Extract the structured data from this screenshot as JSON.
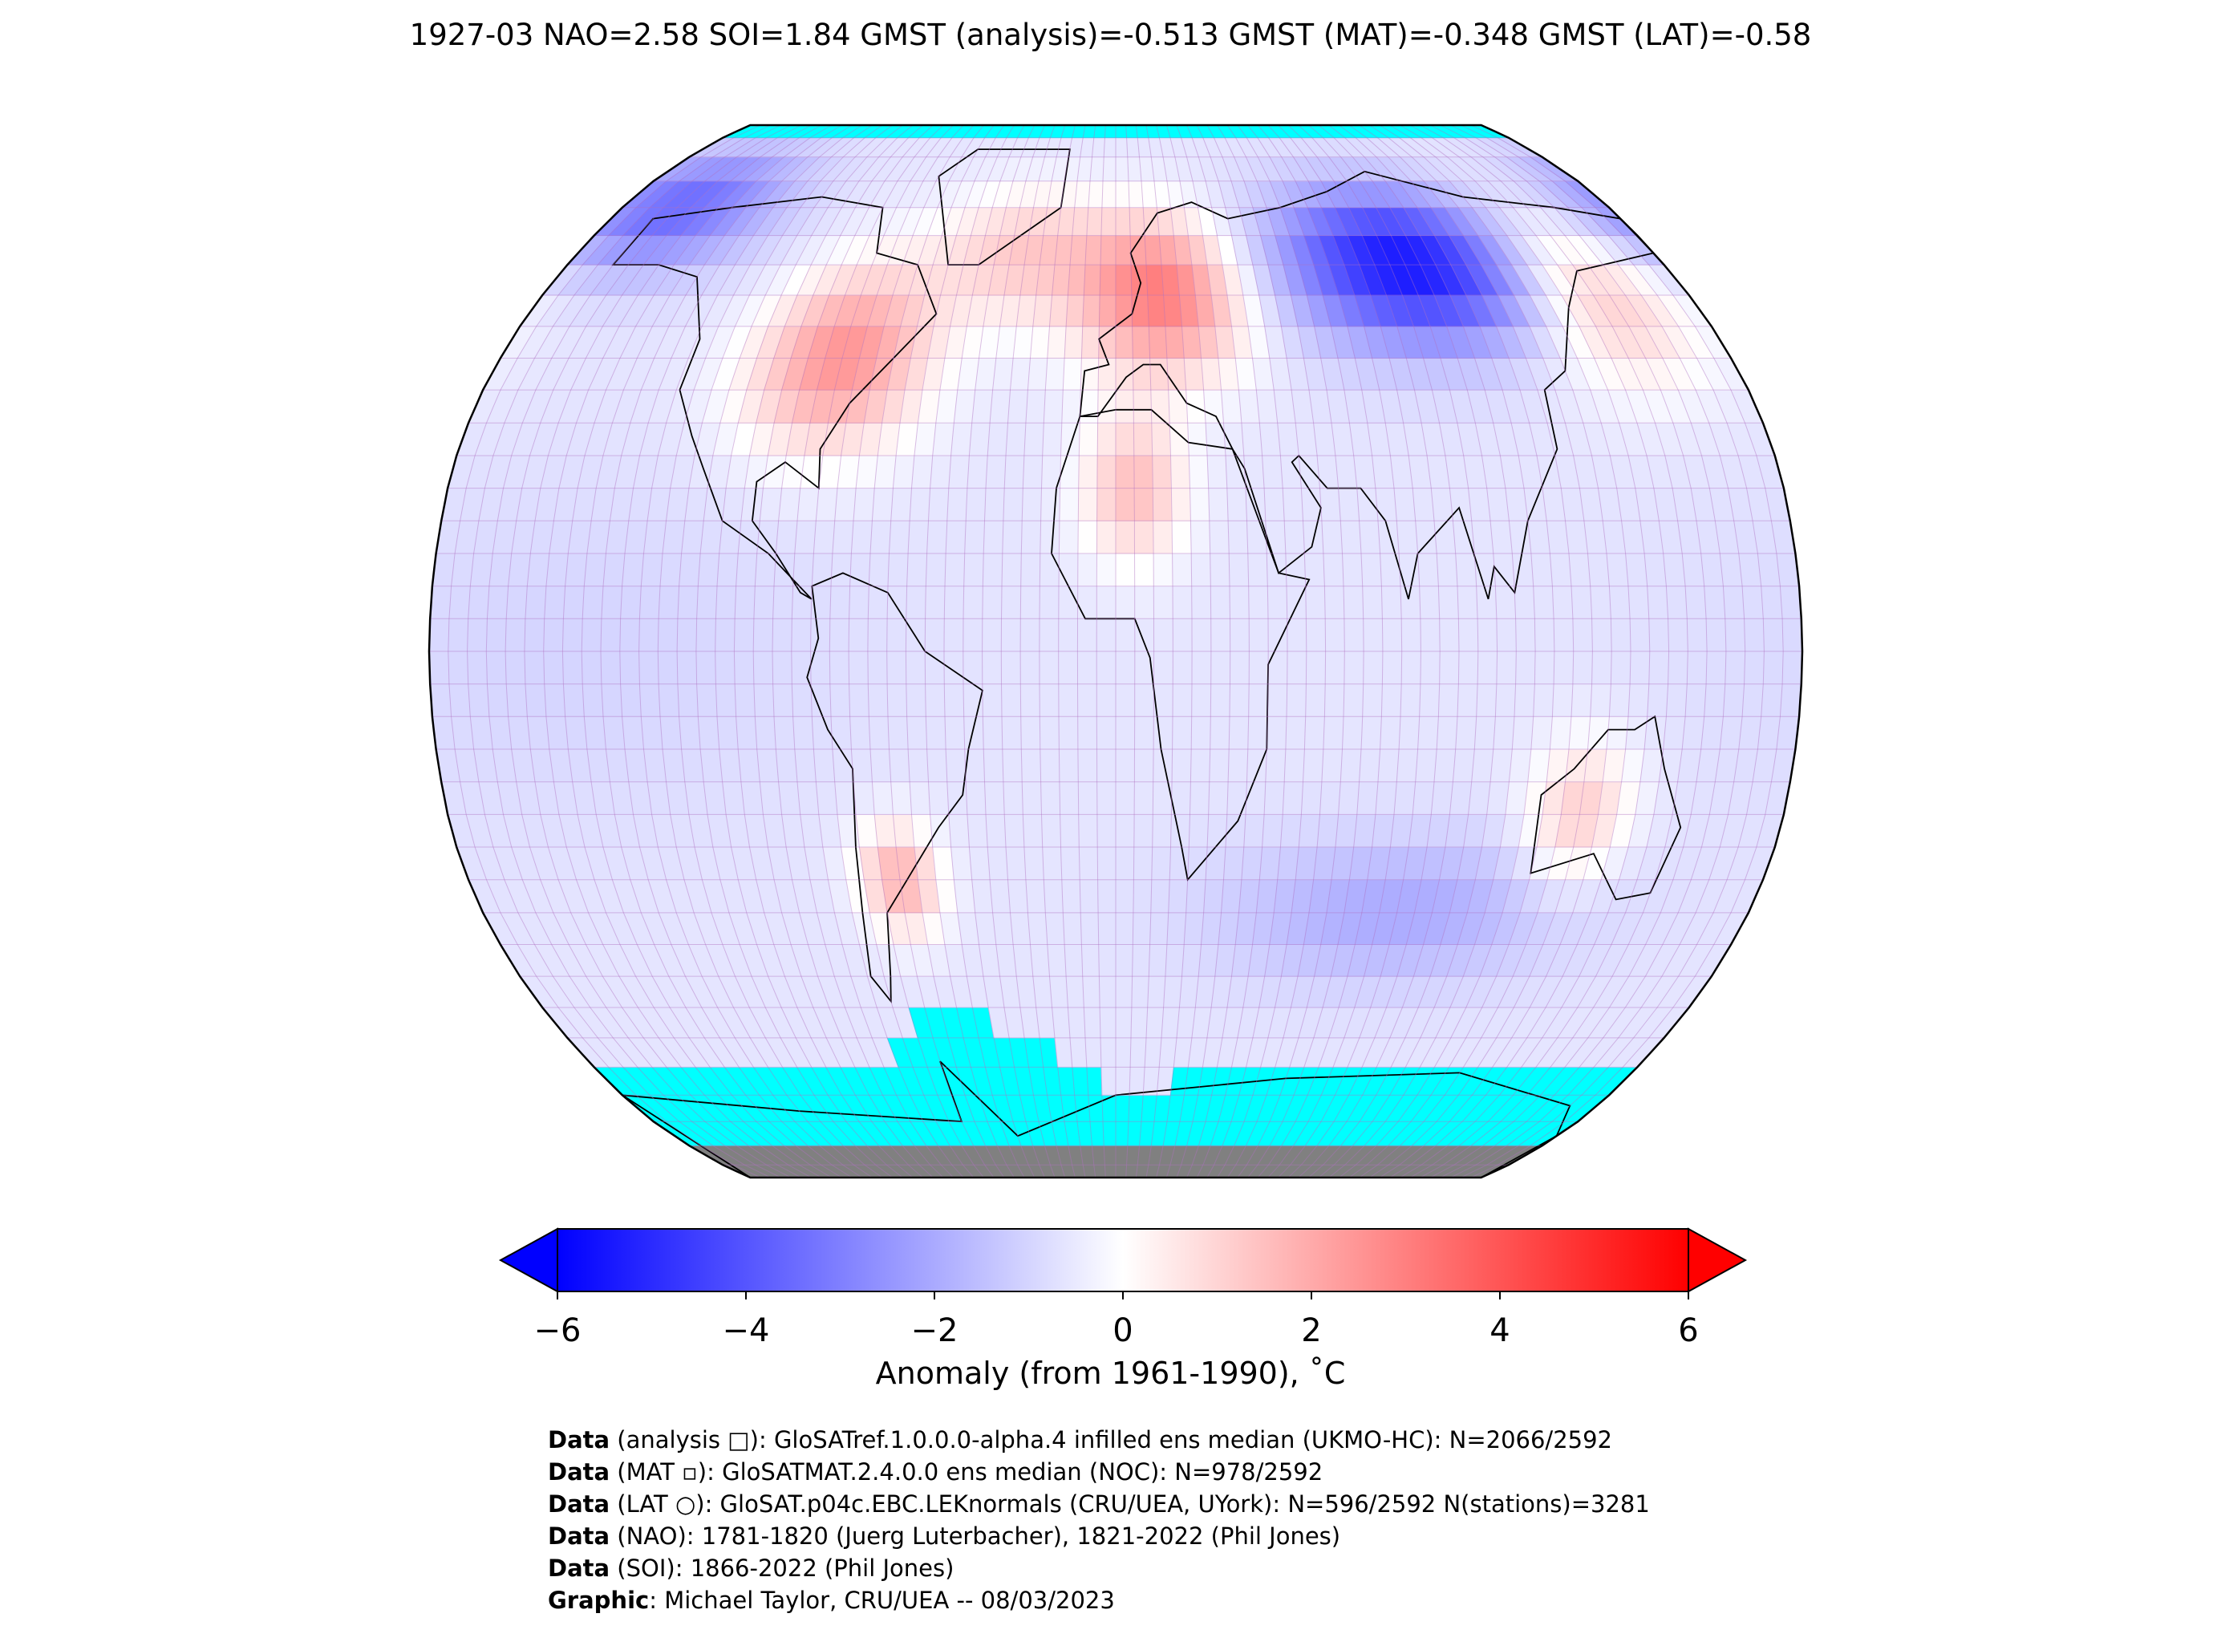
{
  "title": "1927-03 NAO=2.58 SOI=1.84 GMST (analysis)=-0.513 GMST (MAT)=-0.348 GMST (LAT)=-0.58",
  "colors": {
    "cold_extreme": "#0000ff",
    "neutral": "#ffffff",
    "warm_extreme": "#ff0000",
    "sea_ice": "#00ffff",
    "antarctica_land": "#808080",
    "grid_lines": "#b070c0",
    "coastlines": "#000000"
  },
  "map": {
    "projection": "Robinson",
    "grid_resolution_deg": 5,
    "anomaly_regions": [
      {
        "region": "north-america-east",
        "anomaly_c": 2.5
      },
      {
        "region": "europe",
        "anomaly_c": 3.0
      },
      {
        "region": "north-atlantic",
        "anomaly_c": 1.2
      },
      {
        "region": "central-siberia",
        "anomaly_c": -5.5
      },
      {
        "region": "alaska-arctic",
        "anomaly_c": -3.5
      },
      {
        "region": "east-asia-north-pacific",
        "anomaly_c": 1.5
      },
      {
        "region": "tropical-pacific",
        "anomaly_c": -1.0
      },
      {
        "region": "south-indian-ocean",
        "anomaly_c": -2.0
      },
      {
        "region": "southern-south-america",
        "anomaly_c": 1.8
      },
      {
        "region": "western-australia",
        "anomaly_c": 1.2
      },
      {
        "region": "sahara",
        "anomaly_c": 1.5
      }
    ]
  },
  "colorbar": {
    "vmin": -6,
    "vmax": 6,
    "ticks": [
      "−6",
      "−4",
      "−2",
      "0",
      "2",
      "4",
      "6"
    ],
    "tick_values": [
      -6,
      -4,
      -2,
      0,
      2,
      4,
      6
    ],
    "label": "Anomaly (from 1961-1990), ˚C",
    "extend": "both"
  },
  "credits": [
    {
      "key": "Data",
      "rest": " (analysis □): GloSATref.1.0.0.0-alpha.4 infilled ens median (UKMO-HC): N=2066/2592"
    },
    {
      "key": "Data",
      "rest": " (MAT ▫): GloSATMAT.2.4.0.0 ens median (NOC): N=978/2592"
    },
    {
      "key": "Data",
      "rest": " (LAT ○): GloSAT.p04c.EBC.LEKnormals (CRU/UEA, UYork): N=596/2592 N(stations)=3281"
    },
    {
      "key": "Data",
      "rest": " (NAO): 1781-1820 (Juerg Luterbacher), 1821-2022 (Phil Jones)"
    },
    {
      "key": "Data",
      "rest": " (SOI): 1866-2022 (Phil Jones)"
    },
    {
      "key": "Graphic",
      "rest": ": Michael Taylor, CRU/UEA -- 08/03/2023"
    }
  ]
}
